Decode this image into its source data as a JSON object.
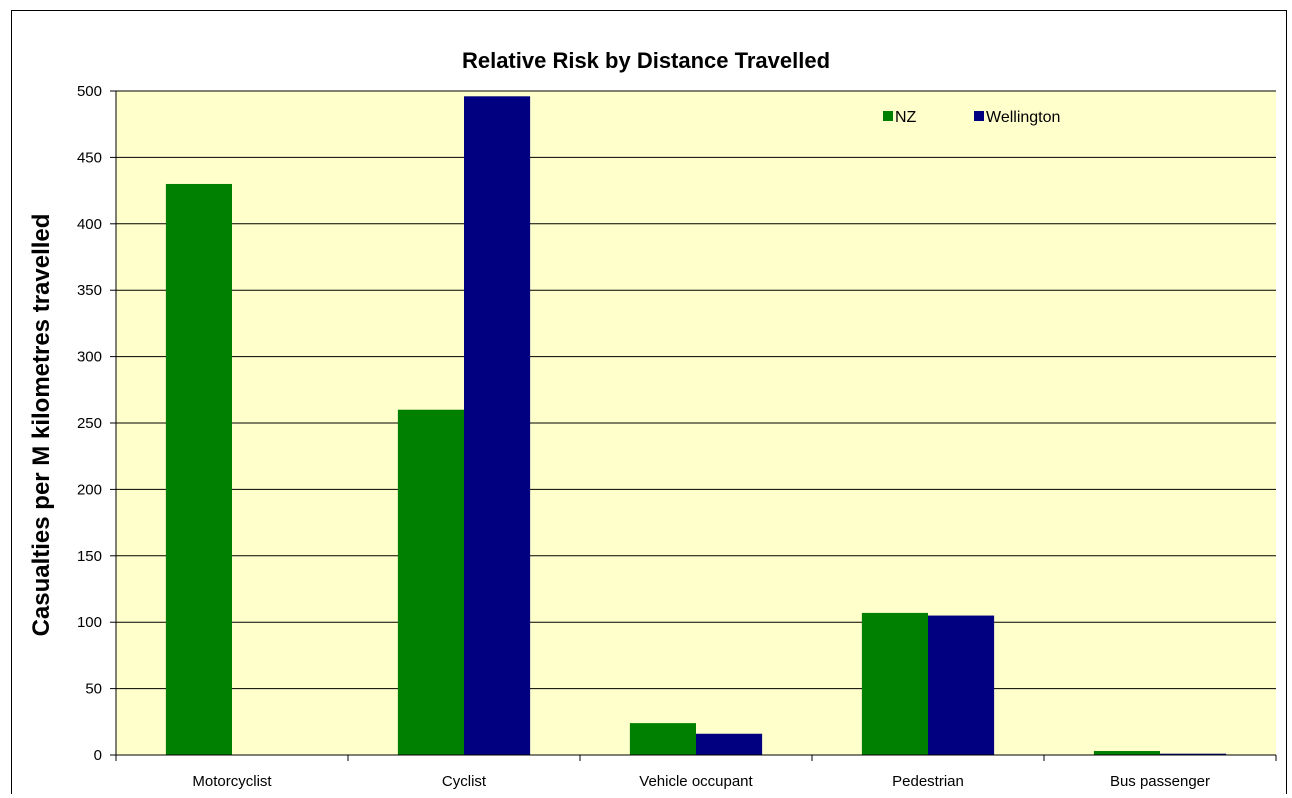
{
  "chart_data": {
    "type": "bar",
    "title": "Relative Risk by Distance Travelled",
    "xlabel": "",
    "ylabel": "Casualties per M kilometres travelled",
    "categories": [
      "Motorcyclist",
      "Cyclist",
      "Vehicle occupant",
      "Pedestrian",
      "Bus passenger"
    ],
    "series": [
      {
        "name": "NZ",
        "color": "#008000",
        "values": [
          430,
          260,
          24,
          107,
          3
        ]
      },
      {
        "name": "Wellington",
        "color": "#000080",
        "values": [
          0,
          496,
          16,
          105,
          1
        ]
      }
    ],
    "ylim": [
      0,
      500
    ],
    "yticks": [
      0,
      50,
      100,
      150,
      200,
      250,
      300,
      350,
      400,
      450,
      500
    ],
    "grid": true,
    "plot_background": "#ffffcc",
    "legend_position": "top-right"
  }
}
